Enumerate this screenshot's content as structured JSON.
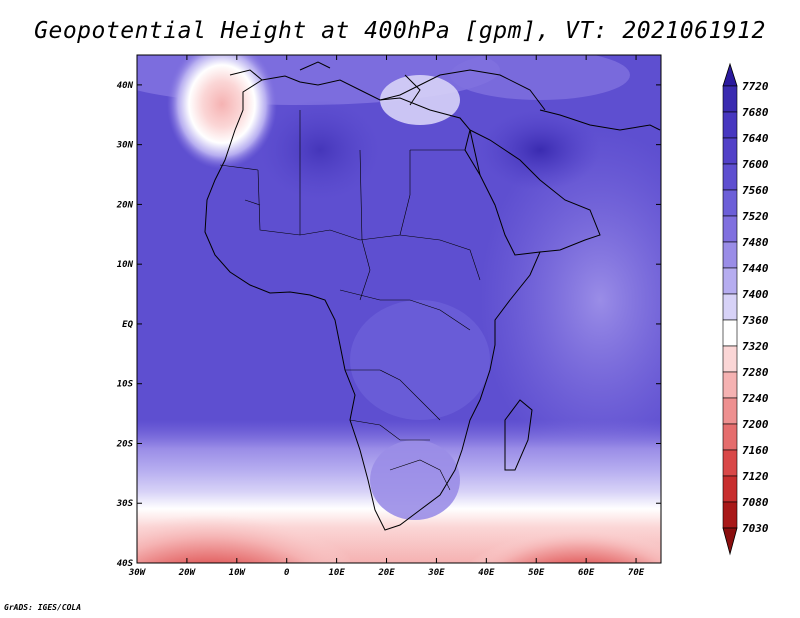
{
  "title": "Geopotential Height at 400hPa [gpm], VT: 2021061912",
  "credit": "GrADS: IGES/COLA",
  "map": {
    "lon_ticks": [
      "30W",
      "20W",
      "10W",
      "0",
      "10E",
      "20E",
      "30E",
      "40E",
      "50E",
      "60E",
      "70E"
    ],
    "lat_ticks": [
      "40N",
      "30N",
      "20N",
      "10N",
      "EQ",
      "10S",
      "20S",
      "30S",
      "40S"
    ],
    "lon_range": [
      -30,
      75
    ],
    "lat_range": [
      -40,
      45
    ]
  },
  "colorbar": {
    "levels": [
      "7720",
      "7680",
      "7640",
      "7600",
      "7560",
      "7520",
      "7480",
      "7440",
      "7400",
      "7360",
      "7320",
      "7280",
      "7240",
      "7200",
      "7160",
      "7120",
      "7080",
      "7030"
    ],
    "colors": [
      "#2b1a9e",
      "#3a2bb0",
      "#4737c0",
      "#5241c8",
      "#5e4fd0",
      "#6c5fd8",
      "#8070df",
      "#9a8de7",
      "#b6adf0",
      "#d7d2f7",
      "#ffffff",
      "#fbd6d6",
      "#f5b2b2",
      "#ee9090",
      "#e56d6d",
      "#d94848",
      "#c82e2e",
      "#a81818",
      "#8a0e0e"
    ]
  }
}
